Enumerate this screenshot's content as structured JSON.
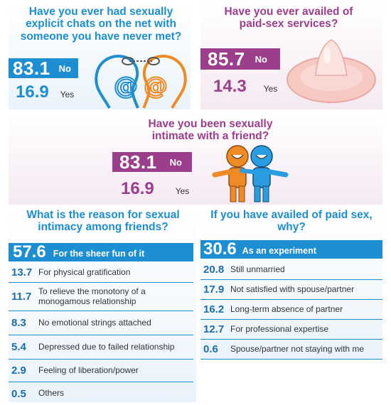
{
  "panels": {
    "chats": {
      "question": "Have you ever had sexually explicit chats on the net with someone you have never met?",
      "no": {
        "value": "83.1",
        "label": "No"
      },
      "yes": {
        "value": "16.9",
        "label": "Yes"
      }
    },
    "paid": {
      "question": "Have you ever availed of paid-sex services?",
      "no": {
        "value": "85.7",
        "label": "No"
      },
      "yes": {
        "value": "14.3",
        "label": "Yes"
      }
    },
    "friend": {
      "question": "Have you been sexually intimate with a friend?",
      "no": {
        "value": "83.1",
        "label": "No"
      },
      "yes": {
        "value": "16.9",
        "label": "Yes"
      }
    }
  },
  "reasons_friends": {
    "title": "What is the reason for sexual intimacy among friends?",
    "top": {
      "value": "57.6",
      "label": "For the sheer fun of it"
    },
    "rows": [
      {
        "value": "13.7",
        "label": "For physical gratification"
      },
      {
        "value": "11.7",
        "label": "To relieve the monotony of a monogamous relationship"
      },
      {
        "value": "8.3",
        "label": "No emotional strings attached"
      },
      {
        "value": "5.4",
        "label": "Depressed due to failed relationship"
      },
      {
        "value": "2.9",
        "label": "Feeling of liberation/power"
      },
      {
        "value": "0.5",
        "label": "Others"
      }
    ]
  },
  "reasons_paid": {
    "title": "If you have availed of paid sex, why?",
    "top": {
      "value": "30.6",
      "label": "As an experiment"
    },
    "rows": [
      {
        "value": "20.8",
        "label": "Still unmarried"
      },
      {
        "value": "17.9",
        "label": "Not satisfied with spouse/partner"
      },
      {
        "value": "16.2",
        "label": "Long-term absence of partner"
      },
      {
        "value": "12.7",
        "label": "For professional expertise"
      },
      {
        "value": "0.6",
        "label": "Spouse/partner not staying with me"
      }
    ]
  },
  "colors": {
    "blue": "#1c8ed1",
    "purple": "#9b3f8c",
    "orange": "#f08a24",
    "pink_bg": "#f5e9f2",
    "blue_bg": "#eaf3fb"
  },
  "icons": [
    "chat-faces-icon",
    "condom-icon",
    "two-friends-icon"
  ]
}
